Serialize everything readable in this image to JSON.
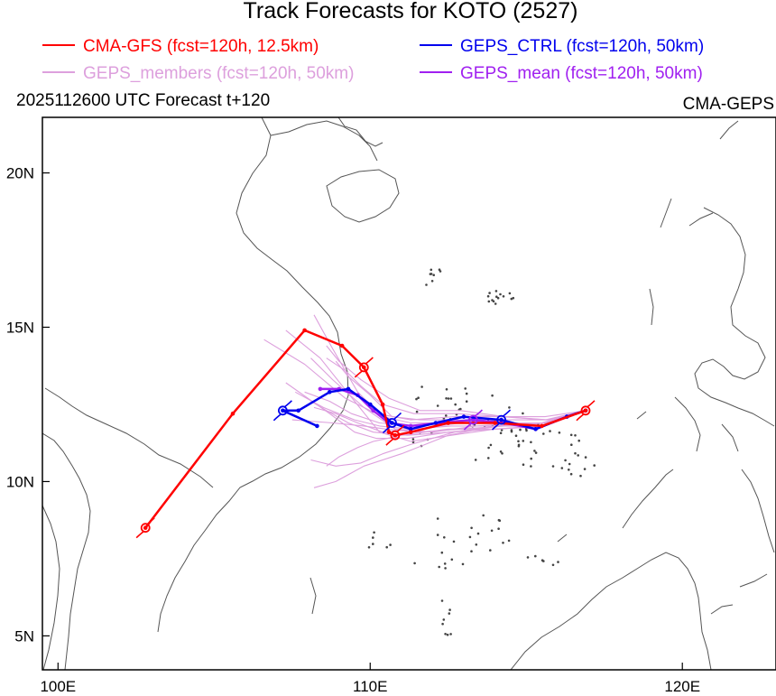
{
  "title": "Track Forecasts for KOTO (2527)",
  "legend": [
    {
      "label": "CMA-GFS (fcst=120h, 12.5km)",
      "color": "#ff0000"
    },
    {
      "label": "GEPS_CTRL (fcst=120h, 50km)",
      "color": "#0000ee"
    },
    {
      "label": "GEPS_members (fcst=120h, 50km)",
      "color": "#dda0dd"
    },
    {
      "label": "GEPS_mean (fcst=120h, 50km)",
      "color": "#a020f0"
    }
  ],
  "subtitle_left": "2025112600 UTC Forecast t+120",
  "subtitle_right": "CMA-GEPS",
  "axes": {
    "lon_ticks": [
      "100E",
      "110E",
      "120E"
    ],
    "lat_ticks": [
      "20N",
      "15N",
      "10N",
      "5N"
    ]
  },
  "chart_data": {
    "type": "map-tracks",
    "lon_range": [
      99.5,
      123.0
    ],
    "lat_range": [
      3.9,
      21.8
    ],
    "lon_ticks": [
      100,
      110,
      120
    ],
    "lat_ticks": [
      20,
      15,
      10,
      5
    ],
    "tracks": {
      "cma_gfs": [
        [
          116.9,
          12.3
        ],
        [
          115.5,
          11.8
        ],
        [
          114.0,
          11.9
        ],
        [
          112.5,
          11.9
        ],
        [
          111.3,
          11.6
        ],
        [
          110.8,
          11.5
        ],
        [
          110.6,
          11.6
        ],
        [
          110.4,
          12.5
        ],
        [
          109.8,
          13.7
        ],
        [
          109.1,
          14.4
        ],
        [
          107.9,
          14.9
        ],
        [
          105.6,
          12.2
        ],
        [
          102.8,
          8.5
        ]
      ],
      "geps_ctrl": [
        [
          116.9,
          12.3
        ],
        [
          116.3,
          12.1
        ],
        [
          115.3,
          11.7
        ],
        [
          114.2,
          12.0
        ],
        [
          113.0,
          12.1
        ],
        [
          112.1,
          11.9
        ],
        [
          111.3,
          11.7
        ],
        [
          110.7,
          11.9
        ],
        [
          110.0,
          12.5
        ],
        [
          109.3,
          13.0
        ],
        [
          108.7,
          12.9
        ],
        [
          107.7,
          12.3
        ],
        [
          107.2,
          12.3
        ],
        [
          108.3,
          11.8
        ]
      ],
      "geps_mean": [
        [
          116.9,
          12.3
        ],
        [
          116.3,
          12.1
        ],
        [
          115.3,
          11.7
        ],
        [
          114.3,
          11.9
        ],
        [
          113.3,
          12.0
        ],
        [
          112.2,
          11.9
        ],
        [
          111.3,
          11.8
        ],
        [
          110.6,
          11.9
        ],
        [
          110.1,
          12.3
        ],
        [
          109.6,
          12.8
        ],
        [
          109.0,
          13.0
        ],
        [
          108.4,
          13.0
        ]
      ],
      "geps_members": [
        [
          [
            116.9,
            12.3
          ],
          [
            115.8,
            11.9
          ],
          [
            114.7,
            11.9
          ],
          [
            113.4,
            11.8
          ],
          [
            112.0,
            11.6
          ],
          [
            110.8,
            11.7
          ],
          [
            109.8,
            12.4
          ],
          [
            108.8,
            13.3
          ],
          [
            108.1,
            14.0
          ]
        ],
        [
          [
            116.9,
            12.3
          ],
          [
            115.5,
            11.8
          ],
          [
            114.0,
            11.7
          ],
          [
            112.6,
            11.5
          ],
          [
            111.3,
            11.3
          ],
          [
            110.3,
            11.6
          ],
          [
            109.5,
            12.6
          ],
          [
            108.4,
            14.0
          ],
          [
            107.3,
            14.9
          ]
        ],
        [
          [
            116.9,
            12.3
          ],
          [
            115.6,
            12.0
          ],
          [
            114.2,
            12.1
          ],
          [
            112.7,
            12.1
          ],
          [
            111.3,
            12.0
          ],
          [
            110.2,
            12.2
          ],
          [
            109.2,
            12.7
          ],
          [
            107.9,
            13.8
          ],
          [
            106.6,
            14.6
          ]
        ],
        [
          [
            116.9,
            12.3
          ],
          [
            115.7,
            11.9
          ],
          [
            114.3,
            11.9
          ],
          [
            112.8,
            11.9
          ],
          [
            111.4,
            11.8
          ],
          [
            110.3,
            11.9
          ],
          [
            109.4,
            12.2
          ],
          [
            108.7,
            12.6
          ],
          [
            107.9,
            12.9
          ]
        ],
        [
          [
            116.9,
            12.3
          ],
          [
            115.6,
            11.8
          ],
          [
            114.1,
            11.7
          ],
          [
            112.5,
            11.7
          ],
          [
            111.0,
            11.5
          ],
          [
            110.1,
            11.3
          ],
          [
            109.6,
            11.1
          ],
          [
            109.0,
            10.8
          ],
          [
            108.6,
            10.5
          ]
        ],
        [
          [
            116.9,
            12.3
          ],
          [
            115.5,
            11.9
          ],
          [
            114.0,
            11.8
          ],
          [
            112.5,
            11.5
          ],
          [
            111.0,
            10.9
          ],
          [
            109.8,
            10.5
          ],
          [
            108.9,
            10.0
          ],
          [
            108.2,
            9.8
          ]
        ],
        [
          [
            116.9,
            12.3
          ],
          [
            115.7,
            12.0
          ],
          [
            114.3,
            12.1
          ],
          [
            112.9,
            12.3
          ],
          [
            111.6,
            12.3
          ],
          [
            110.6,
            12.7
          ],
          [
            109.7,
            13.3
          ],
          [
            109.0,
            13.9
          ],
          [
            108.6,
            14.4
          ]
        ],
        [
          [
            116.9,
            12.3
          ],
          [
            115.6,
            11.9
          ],
          [
            114.2,
            11.9
          ],
          [
            112.8,
            12.0
          ],
          [
            111.6,
            12.0
          ],
          [
            110.7,
            12.1
          ],
          [
            110.0,
            12.8
          ],
          [
            109.3,
            13.4
          ],
          [
            108.9,
            13.9
          ]
        ],
        [
          [
            116.9,
            12.3
          ],
          [
            115.7,
            11.9
          ],
          [
            114.3,
            11.8
          ],
          [
            112.9,
            11.7
          ],
          [
            111.5,
            11.6
          ],
          [
            110.5,
            11.7
          ],
          [
            109.8,
            11.8
          ],
          [
            108.8,
            11.9
          ],
          [
            107.5,
            12.0
          ]
        ],
        [
          [
            116.9,
            12.3
          ],
          [
            115.6,
            11.8
          ],
          [
            114.2,
            11.8
          ],
          [
            112.7,
            11.6
          ],
          [
            111.3,
            11.2
          ],
          [
            110.4,
            10.9
          ],
          [
            109.7,
            10.6
          ],
          [
            108.9,
            10.5
          ],
          [
            108.1,
            10.7
          ]
        ],
        [
          [
            116.9,
            12.3
          ],
          [
            115.6,
            12.1
          ],
          [
            114.2,
            12.1
          ],
          [
            112.8,
            12.2
          ],
          [
            111.4,
            12.2
          ],
          [
            110.4,
            12.5
          ],
          [
            109.7,
            13.1
          ],
          [
            109.2,
            13.6
          ],
          [
            108.6,
            14.0
          ]
        ],
        [
          [
            116.9,
            12.3
          ],
          [
            115.5,
            11.9
          ],
          [
            114.0,
            11.8
          ],
          [
            112.6,
            11.8
          ],
          [
            111.3,
            11.7
          ],
          [
            110.3,
            11.8
          ],
          [
            109.5,
            12.0
          ],
          [
            108.5,
            12.4
          ],
          [
            107.6,
            12.9
          ]
        ],
        [
          [
            116.9,
            12.3
          ],
          [
            115.6,
            11.8
          ],
          [
            114.1,
            11.8
          ],
          [
            112.6,
            11.6
          ],
          [
            111.2,
            11.5
          ],
          [
            110.1,
            11.6
          ],
          [
            109.3,
            11.9
          ],
          [
            108.6,
            12.3
          ],
          [
            108.1,
            12.6
          ]
        ],
        [
          [
            116.9,
            12.3
          ],
          [
            115.7,
            12.0
          ],
          [
            114.3,
            12.0
          ],
          [
            112.9,
            11.9
          ],
          [
            111.5,
            11.7
          ],
          [
            110.4,
            11.6
          ],
          [
            109.6,
            11.9
          ],
          [
            108.9,
            12.2
          ],
          [
            108.2,
            12.4
          ]
        ],
        [
          [
            116.9,
            12.3
          ],
          [
            115.6,
            11.9
          ],
          [
            114.2,
            11.9
          ],
          [
            112.7,
            11.9
          ],
          [
            111.3,
            11.9
          ],
          [
            110.4,
            12.1
          ],
          [
            109.6,
            12.9
          ],
          [
            108.8,
            14.3
          ],
          [
            108.2,
            15.4
          ]
        ],
        [
          [
            116.9,
            12.3
          ],
          [
            115.5,
            11.8
          ],
          [
            114.0,
            11.7
          ],
          [
            112.5,
            11.6
          ],
          [
            111.2,
            11.4
          ],
          [
            110.2,
            11.4
          ],
          [
            109.5,
            11.6
          ],
          [
            108.7,
            12.2
          ],
          [
            107.3,
            13.2
          ]
        ]
      ]
    }
  }
}
